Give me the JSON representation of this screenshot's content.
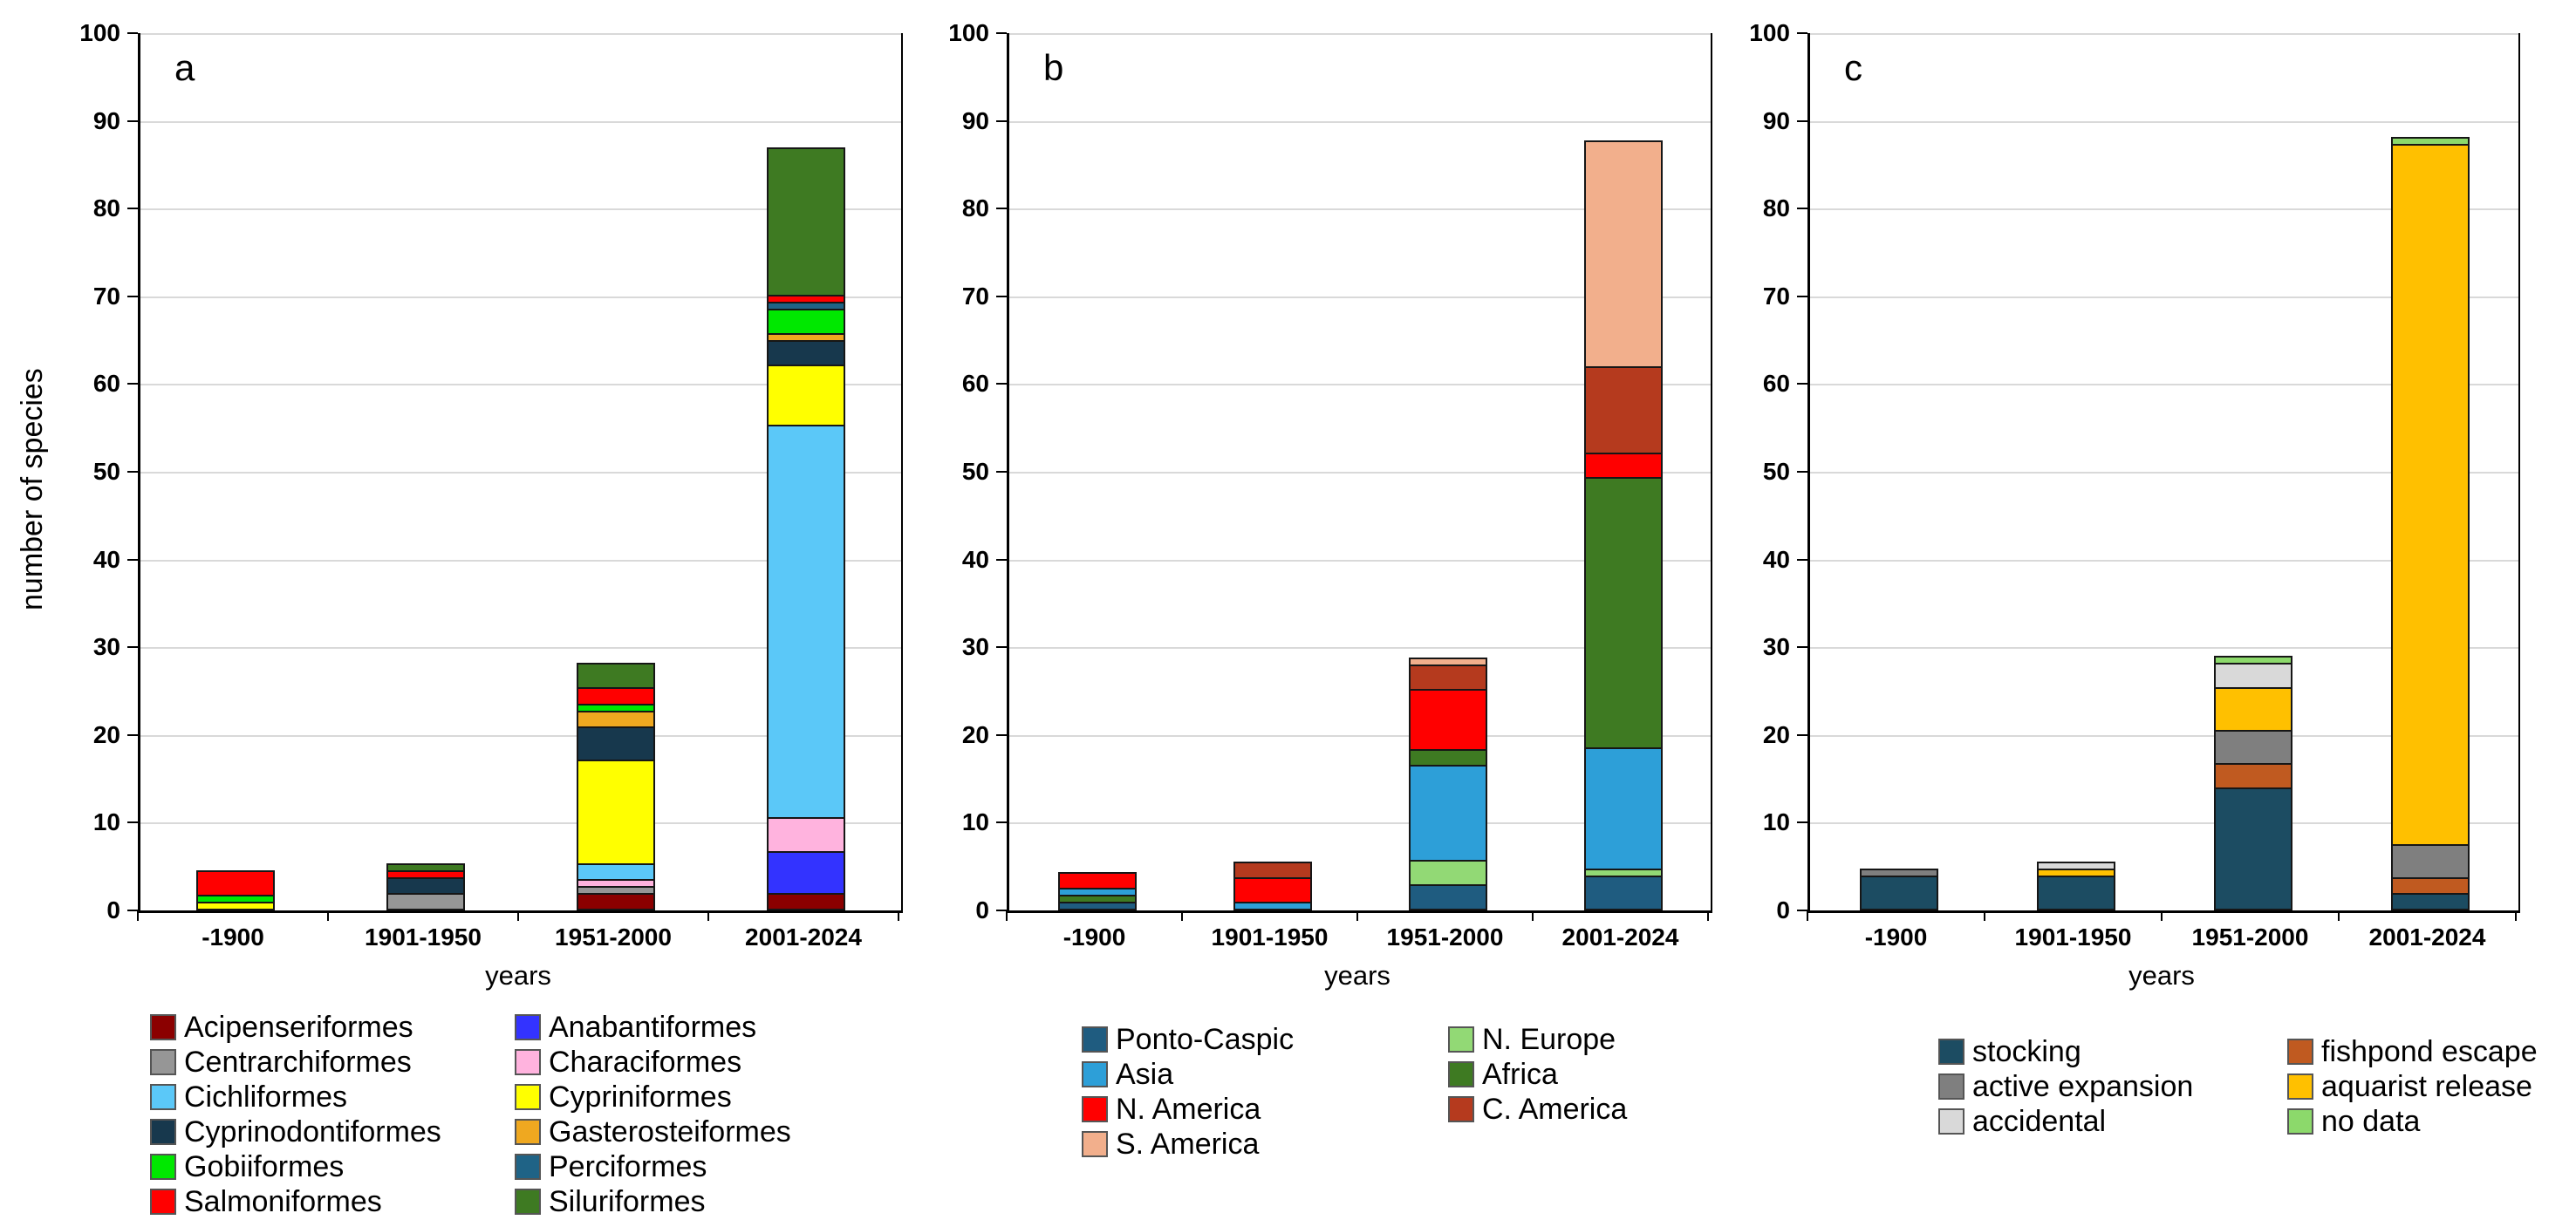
{
  "page": {
    "background": "#FFFFFF",
    "y_axis_label": "number of species",
    "x_axis_label": "years",
    "y_ticks": [
      0,
      10,
      20,
      30,
      40,
      50,
      60,
      70,
      80,
      90,
      100
    ]
  },
  "chart_data": [
    {
      "panel_letter": "a",
      "type": "bar",
      "stacked": true,
      "title": "",
      "xlabel": "years",
      "ylabel": "number of species",
      "ylim": [
        0,
        100
      ],
      "grid": true,
      "legend_position": "bottom",
      "categories": [
        "-1900",
        "1901-1950",
        "1951-2000",
        "2001-2024"
      ],
      "legend_columns": [
        [
          {
            "label": "Acipenseriformes",
            "color": "#8B0000"
          },
          {
            "label": "Centrarchiformes",
            "color": "#969696"
          },
          {
            "label": "Cichliformes",
            "color": "#5BC8F8"
          },
          {
            "label": "Cyprinodontiformes",
            "color": "#17384D"
          },
          {
            "label": "Gobiiformes",
            "color": "#00E800"
          },
          {
            "label": "Salmoniformes",
            "color": "#FF0000"
          }
        ],
        [
          {
            "label": "Anabantiformes",
            "color": "#3333FF"
          },
          {
            "label": "Characiformes",
            "color": "#FFB3DE"
          },
          {
            "label": "Cypriniformes",
            "color": "#FFFF00"
          },
          {
            "label": "Gasterosteiformes",
            "color": "#EFA820"
          },
          {
            "label": "Perciformes",
            "color": "#1F6386"
          },
          {
            "label": "Siluriformes",
            "color": "#3E7A22"
          }
        ]
      ],
      "series": [
        {
          "name": "Acipenseriformes",
          "values": [
            0,
            0,
            2,
            2
          ]
        },
        {
          "name": "Anabantiformes",
          "values": [
            0,
            0,
            0,
            5
          ]
        },
        {
          "name": "Centrarchiformes",
          "values": [
            0,
            2,
            1,
            0
          ]
        },
        {
          "name": "Characiformes",
          "values": [
            0,
            0,
            1,
            4
          ]
        },
        {
          "name": "Cichliformes",
          "values": [
            0,
            0,
            2,
            45
          ]
        },
        {
          "name": "Cypriniformes",
          "values": [
            1,
            0,
            12,
            7
          ]
        },
        {
          "name": "Cyprinodontiformes",
          "values": [
            0,
            2,
            4,
            3
          ]
        },
        {
          "name": "Gasterosteiformes",
          "values": [
            0,
            0,
            2,
            1
          ]
        },
        {
          "name": "Gobiiformes",
          "values": [
            1,
            0,
            1,
            3
          ]
        },
        {
          "name": "Perciformes",
          "values": [
            0,
            0,
            0,
            1
          ]
        },
        {
          "name": "Salmoniformes",
          "values": [
            3,
            1,
            2,
            1
          ]
        },
        {
          "name": "Siluriformes",
          "values": [
            0,
            1,
            3,
            17
          ]
        }
      ],
      "stacks": [
        [
          {
            "label": "Cypriniformes",
            "value": 1
          },
          {
            "label": "Gobiiformes",
            "value": 1
          },
          {
            "label": "Salmoniformes",
            "value": 3
          }
        ],
        [
          {
            "label": "Centrarchiformes",
            "value": 2
          },
          {
            "label": "Cyprinodontiformes",
            "value": 2
          },
          {
            "label": "Salmoniformes",
            "value": 1
          },
          {
            "label": "Siluriformes",
            "value": 1
          }
        ],
        [
          {
            "label": "Acipenseriformes",
            "value": 2
          },
          {
            "label": "Centrarchiformes",
            "value": 1
          },
          {
            "label": "Characiformes",
            "value": 1
          },
          {
            "label": "Cichliformes",
            "value": 2
          },
          {
            "label": "Cypriniformes",
            "value": 12
          },
          {
            "label": "Cyprinodontiformes",
            "value": 4
          },
          {
            "label": "Gasterosteiformes",
            "value": 2
          },
          {
            "label": "Gobiiformes",
            "value": 1
          },
          {
            "label": "Salmoniformes",
            "value": 2
          },
          {
            "label": "Siluriformes",
            "value": 3
          }
        ],
        [
          {
            "label": "Acipenseriformes",
            "value": 2
          },
          {
            "label": "Anabantiformes",
            "value": 5
          },
          {
            "label": "Characiformes",
            "value": 4
          },
          {
            "label": "Cichliformes",
            "value": 45
          },
          {
            "label": "Cypriniformes",
            "value": 7
          },
          {
            "label": "Cyprinodontiformes",
            "value": 3
          },
          {
            "label": "Gasterosteiformes",
            "value": 1
          },
          {
            "label": "Gobiiformes",
            "value": 3
          },
          {
            "label": "Perciformes",
            "value": 1
          },
          {
            "label": "Salmoniformes",
            "value": 1
          },
          {
            "label": "Siluriformes",
            "value": 17
          }
        ]
      ]
    },
    {
      "panel_letter": "b",
      "type": "bar",
      "stacked": true,
      "title": "",
      "xlabel": "years",
      "ylabel": "",
      "ylim": [
        0,
        100
      ],
      "grid": true,
      "legend_position": "bottom",
      "categories": [
        "-1900",
        "1901-1950",
        "1951-2000",
        "2001-2024"
      ],
      "legend_columns": [
        [
          {
            "label": "Ponto-Caspic",
            "color": "#1F5C80"
          },
          {
            "label": "Asia",
            "color": "#2D9FD8"
          },
          {
            "label": "N. America",
            "color": "#FF0000"
          },
          {
            "label": "S. America",
            "color": "#F2AF8C"
          }
        ],
        [
          {
            "label": "N. Europe",
            "color": "#92D975"
          },
          {
            "label": "Africa",
            "color": "#3E7A22"
          },
          {
            "label": "C. America",
            "color": "#B53A1E"
          }
        ]
      ],
      "series": [
        {
          "name": "Ponto-Caspic",
          "values": [
            1,
            0,
            3,
            4
          ]
        },
        {
          "name": "N. Europe",
          "values": [
            0,
            0,
            3,
            1
          ]
        },
        {
          "name": "Asia",
          "values": [
            1,
            1,
            11,
            14
          ]
        },
        {
          "name": "Africa",
          "values": [
            1,
            0,
            2,
            31
          ]
        },
        {
          "name": "N. America",
          "values": [
            2,
            3,
            7,
            3
          ]
        },
        {
          "name": "C. America",
          "values": [
            0,
            2,
            3,
            10
          ]
        },
        {
          "name": "S. America",
          "values": [
            0,
            0,
            1,
            26
          ]
        }
      ],
      "stacks": [
        [
          {
            "label": "Ponto-Caspic",
            "value": 1
          },
          {
            "label": "Africa",
            "value": 1
          },
          {
            "label": "Asia",
            "value": 1
          },
          {
            "label": "N. America",
            "value": 2
          }
        ],
        [
          {
            "label": "Asia",
            "value": 1
          },
          {
            "label": "N. America",
            "value": 3
          },
          {
            "label": "C. America",
            "value": 2
          }
        ],
        [
          {
            "label": "Ponto-Caspic",
            "value": 3
          },
          {
            "label": "N. Europe",
            "value": 3
          },
          {
            "label": "Asia",
            "value": 11
          },
          {
            "label": "Africa",
            "value": 2
          },
          {
            "label": "N. America",
            "value": 7
          },
          {
            "label": "C. America",
            "value": 3
          },
          {
            "label": "S. America",
            "value": 1
          }
        ],
        [
          {
            "label": "Ponto-Caspic",
            "value": 4
          },
          {
            "label": "N. Europe",
            "value": 1
          },
          {
            "label": "Asia",
            "value": 14
          },
          {
            "label": "Africa",
            "value": 31
          },
          {
            "label": "N. America",
            "value": 3
          },
          {
            "label": "C. America",
            "value": 10
          },
          {
            "label": "S. America",
            "value": 26
          }
        ]
      ]
    },
    {
      "panel_letter": "c",
      "type": "bar",
      "stacked": true,
      "title": "",
      "xlabel": "years",
      "ylabel": "",
      "ylim": [
        0,
        100
      ],
      "grid": true,
      "legend_position": "bottom",
      "categories": [
        "-1900",
        "1901-1950",
        "1951-2000",
        "2001-2024"
      ],
      "legend_columns": [
        [
          {
            "label": "stocking",
            "color": "#1C4C62"
          },
          {
            "label": "active expansion",
            "color": "#7F7F7F"
          },
          {
            "label": "accidental",
            "color": "#D9D9D9"
          }
        ],
        [
          {
            "label": "fishpond escape",
            "color": "#C05A20"
          },
          {
            "label": "aquarist release",
            "color": "#FFC000"
          },
          {
            "label": "no data",
            "color": "#8CD96B"
          }
        ]
      ],
      "series": [
        {
          "name": "stocking",
          "values": [
            4,
            4,
            14,
            2
          ]
        },
        {
          "name": "fishpond escape",
          "values": [
            0,
            0,
            3,
            2
          ]
        },
        {
          "name": "active expansion",
          "values": [
            1,
            0,
            4,
            4
          ]
        },
        {
          "name": "aquarist release",
          "values": [
            0,
            1,
            5,
            80
          ]
        },
        {
          "name": "accidental",
          "values": [
            0,
            1,
            3,
            0
          ]
        },
        {
          "name": "no data",
          "values": [
            0,
            0,
            1,
            1
          ]
        }
      ],
      "stacks": [
        [
          {
            "label": "stocking",
            "value": 4
          },
          {
            "label": "active expansion",
            "value": 1
          }
        ],
        [
          {
            "label": "stocking",
            "value": 4
          },
          {
            "label": "aquarist release",
            "value": 1
          },
          {
            "label": "accidental",
            "value": 1
          }
        ],
        [
          {
            "label": "stocking",
            "value": 14
          },
          {
            "label": "fishpond escape",
            "value": 3
          },
          {
            "label": "active expansion",
            "value": 4
          },
          {
            "label": "aquarist release",
            "value": 5
          },
          {
            "label": "accidental",
            "value": 3
          },
          {
            "label": "no data",
            "value": 1
          }
        ],
        [
          {
            "label": "stocking",
            "value": 2
          },
          {
            "label": "fishpond escape",
            "value": 2
          },
          {
            "label": "active expansion",
            "value": 4
          },
          {
            "label": "aquarist release",
            "value": 80
          },
          {
            "label": "no data",
            "value": 1
          }
        ]
      ]
    }
  ]
}
